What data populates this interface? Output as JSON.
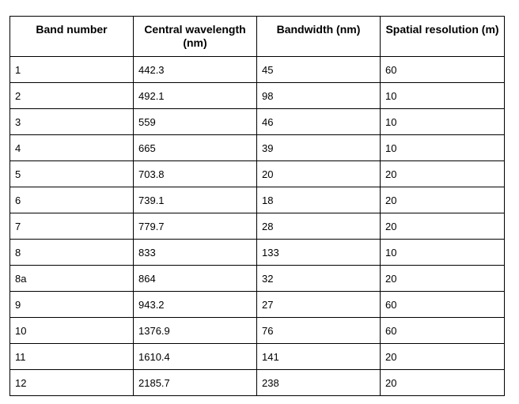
{
  "table": {
    "headers": [
      "Band number",
      "Central wavelength (nm)",
      "Bandwidth (nm)",
      "Spatial resolution (m)"
    ],
    "rows": [
      [
        "1",
        "442.3",
        "45",
        "60"
      ],
      [
        "2",
        "492.1",
        "98",
        "10"
      ],
      [
        "3",
        "559",
        "46",
        "10"
      ],
      [
        "4",
        "665",
        "39",
        "10"
      ],
      [
        "5",
        "703.8",
        "20",
        "20"
      ],
      [
        "6",
        "739.1",
        "18",
        "20"
      ],
      [
        "7",
        "779.7",
        "28",
        "20"
      ],
      [
        "8",
        "833",
        "133",
        "10"
      ],
      [
        "8a",
        "864",
        "32",
        "20"
      ],
      [
        "9",
        "943.2",
        "27",
        "60"
      ],
      [
        "10",
        "1376.9",
        "76",
        "60"
      ],
      [
        "11",
        "1610.4",
        "141",
        "20"
      ],
      [
        "12",
        "2185.7",
        "238",
        "20"
      ]
    ]
  }
}
